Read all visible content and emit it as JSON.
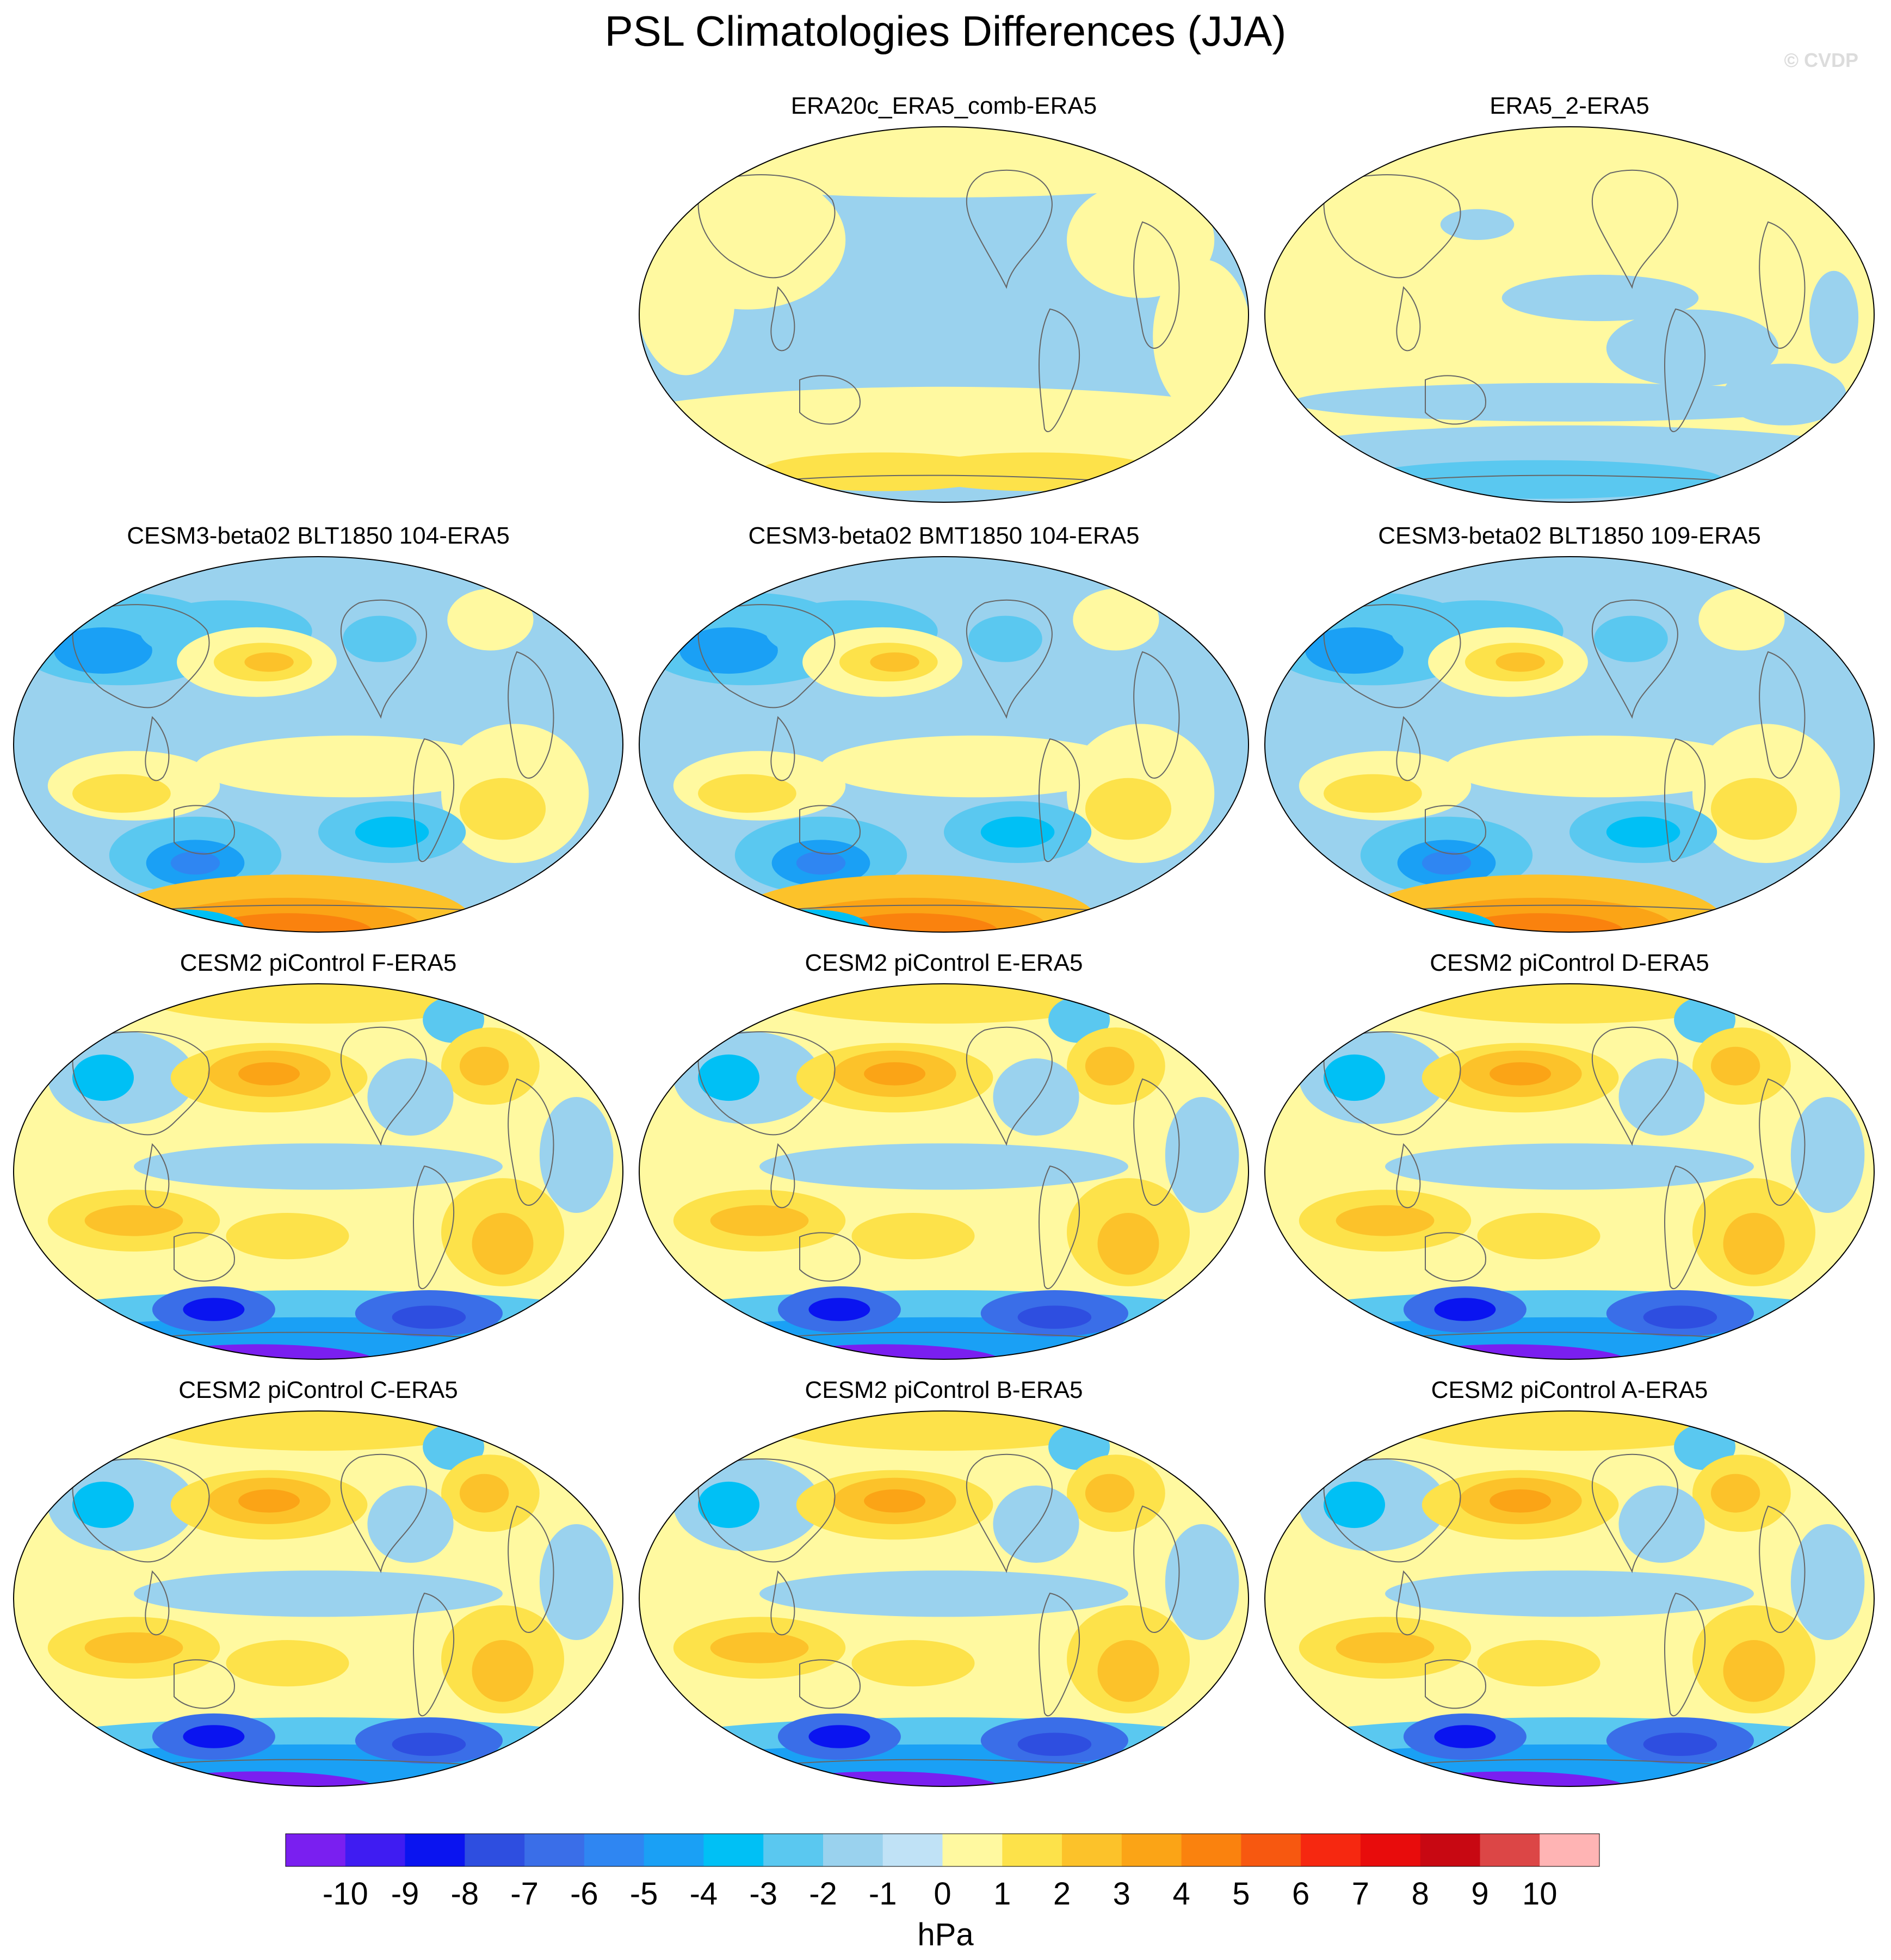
{
  "title": "PSL Climatologies Differences (JJA)",
  "watermark": "© CVDP",
  "chart_data": {
    "type": "heatmap",
    "variable": "PSL",
    "season": "JJA",
    "units": "hPa",
    "colorbar": {
      "levels": [
        -10,
        -9,
        -8,
        -7,
        -6,
        -5,
        -4,
        -3,
        -2,
        -1,
        0,
        1,
        2,
        3,
        4,
        5,
        6,
        7,
        8,
        9,
        10
      ],
      "colors": [
        "#7a1ff0",
        "#3f1cf2",
        "#0a14f0",
        "#2e4ee0",
        "#3a6ee8",
        "#2f86f2",
        "#1aa0f5",
        "#00c0f5",
        "#5ac8f0",
        "#9ad2ee",
        "#c0e2f6",
        "#fff9a0",
        "#fde24a",
        "#fcc22a",
        "#fba416",
        "#fa820e",
        "#f75810",
        "#f62810",
        "#e80c0c",
        "#c80812",
        "#dc4646",
        "#ffb4b4"
      ]
    },
    "panels": [
      {
        "title": "ERA20c_ERA5_comb-ERA5",
        "style": "reanalysis-a"
      },
      {
        "title": "ERA5_2-ERA5",
        "style": "reanalysis-b"
      },
      {
        "title": "CESM3-beta02 BLT1850 104-ERA5",
        "style": "cesm3"
      },
      {
        "title": "CESM3-beta02 BMT1850 104-ERA5",
        "style": "cesm3"
      },
      {
        "title": "CESM3-beta02 BLT1850 109-ERA5",
        "style": "cesm3"
      },
      {
        "title": "CESM2 piControl F-ERA5",
        "style": "cesm2"
      },
      {
        "title": "CESM2 piControl E-ERA5",
        "style": "cesm2"
      },
      {
        "title": "CESM2 piControl D-ERA5",
        "style": "cesm2"
      },
      {
        "title": "CESM2 piControl C-ERA5",
        "style": "cesm2"
      },
      {
        "title": "CESM2 piControl B-ERA5",
        "style": "cesm2"
      },
      {
        "title": "CESM2 piControl A-ERA5",
        "style": "cesm2"
      }
    ]
  }
}
